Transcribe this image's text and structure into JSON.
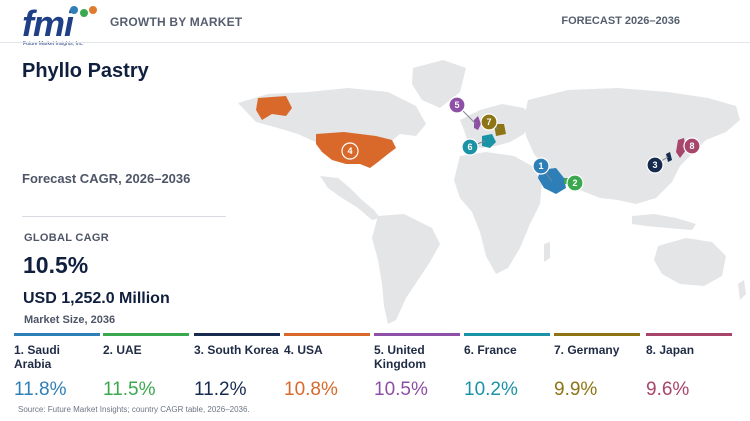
{
  "header": {
    "logo_text": "fmi",
    "logo_tagline": "Future Market Insights, Inc.",
    "left": "GROWTH BY MARKET",
    "right": "FORECAST 2026–2036"
  },
  "title": "Phyllo Pastry",
  "forecast_label": "Forecast CAGR, 2026–2036",
  "global": {
    "label": "GLOBAL CAGR",
    "cagr": "10.5%",
    "market_size": "USD 1,252.0 Million",
    "market_size_label": "Market Size, 2036"
  },
  "countries": [
    {
      "rank": "1",
      "name": "1. Saudi Arabia",
      "cagr": "11.8%",
      "color": "#2e7fb8"
    },
    {
      "rank": "2",
      "name": "2. UAE",
      "cagr": "11.5%",
      "color": "#3aa84f"
    },
    {
      "rank": "3",
      "name": "3. South Korea",
      "cagr": "11.2%",
      "color": "#162b4e"
    },
    {
      "rank": "4",
      "name": "4. USA",
      "cagr": "10.8%",
      "color": "#d9692b"
    },
    {
      "rank": "5",
      "name": "5. United Kingdom",
      "cagr": "10.5%",
      "color": "#8e4fa6"
    },
    {
      "rank": "6",
      "name": "6. France",
      "cagr": "10.2%",
      "color": "#1b93a6"
    },
    {
      "rank": "7",
      "name": "7. Germany",
      "cagr": "9.9%",
      "color": "#8d7415"
    },
    {
      "rank": "8",
      "name": "8. Japan",
      "cagr": "9.6%",
      "color": "#a8456a"
    }
  ],
  "source": "Source: Future Market Insights; country CAGR table, 2026–2036."
}
